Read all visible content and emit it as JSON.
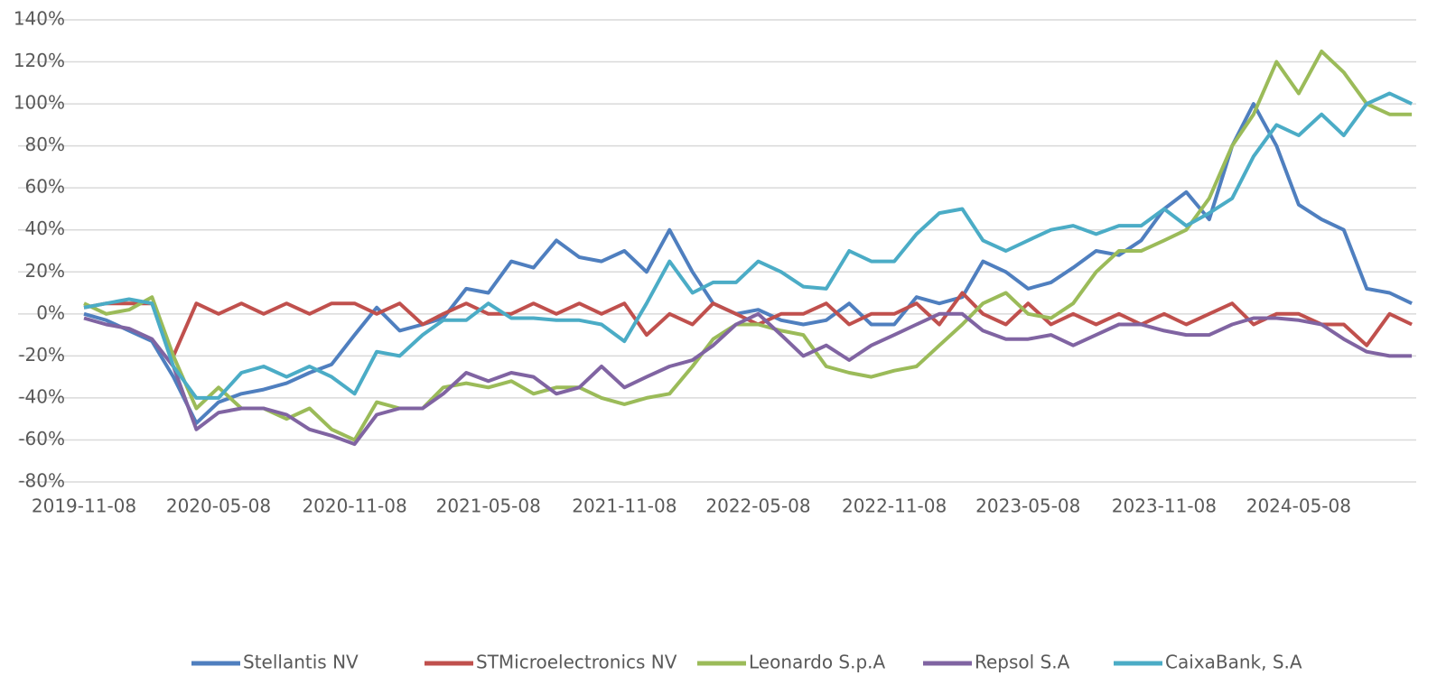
{
  "chart_data": {
    "type": "line",
    "x": [
      "2019-11-08",
      "2019-12-08",
      "2020-01-08",
      "2020-02-08",
      "2020-03-08",
      "2020-04-08",
      "2020-05-08",
      "2020-06-08",
      "2020-07-08",
      "2020-08-08",
      "2020-09-08",
      "2020-10-08",
      "2020-11-08",
      "2020-12-08",
      "2021-01-08",
      "2021-02-08",
      "2021-03-08",
      "2021-04-08",
      "2021-05-08",
      "2021-06-08",
      "2021-07-08",
      "2021-08-08",
      "2021-09-08",
      "2021-10-08",
      "2021-11-08",
      "2021-12-08",
      "2022-01-08",
      "2022-02-08",
      "2022-03-08",
      "2022-04-08",
      "2022-05-08",
      "2022-06-08",
      "2022-07-08",
      "2022-08-08",
      "2022-09-08",
      "2022-10-08",
      "2022-11-08",
      "2022-12-08",
      "2023-01-08",
      "2023-02-08",
      "2023-03-08",
      "2023-04-08",
      "2023-05-08",
      "2023-06-08",
      "2023-07-08",
      "2023-08-08",
      "2023-09-08",
      "2023-10-08",
      "2023-11-08",
      "2023-12-08",
      "2024-01-08",
      "2024-02-08",
      "2024-03-08",
      "2024-04-08",
      "2024-05-08",
      "2024-06-08",
      "2024-07-08",
      "2024-08-08",
      "2024-09-08",
      "2024-10-08"
    ],
    "series": [
      {
        "name": "Stellantis NV",
        "color": "#4f7fbf",
        "values": [
          0,
          -3,
          -8,
          -13,
          -30,
          -52,
          -42,
          -38,
          -36,
          -33,
          -28,
          -24,
          -10,
          3,
          -8,
          -5,
          -2,
          12,
          10,
          25,
          22,
          35,
          27,
          25,
          30,
          20,
          40,
          20,
          5,
          0,
          2,
          -3,
          -5,
          -3,
          5,
          -5,
          -5,
          8,
          5,
          8,
          25,
          20,
          12,
          15,
          22,
          30,
          28,
          35,
          50,
          58,
          45,
          80,
          100,
          80,
          52,
          45,
          40,
          12,
          10,
          5
        ]
      },
      {
        "name": "STMicroelectronics NV",
        "color": "#c0504d",
        "values": [
          3,
          5,
          5,
          5,
          -20,
          5,
          0,
          5,
          0,
          5,
          0,
          5,
          5,
          0,
          5,
          -5,
          0,
          5,
          0,
          0,
          5,
          0,
          5,
          0,
          5,
          -10,
          0,
          -5,
          5,
          0,
          -5,
          0,
          0,
          5,
          -5,
          0,
          0,
          5,
          -5,
          10,
          0,
          -5,
          5,
          -5,
          0,
          -5,
          0,
          -5,
          0,
          -5,
          0,
          5,
          -5,
          0,
          0,
          -5,
          -5,
          -15,
          0,
          -5
        ]
      },
      {
        "name": "Leonardo S.p.A",
        "color": "#9bbb59",
        "values": [
          5,
          0,
          2,
          8,
          -20,
          -45,
          -35,
          -45,
          -45,
          -50,
          -45,
          -55,
          -60,
          -42,
          -45,
          -45,
          -35,
          -33,
          -35,
          -32,
          -38,
          -35,
          -35,
          -40,
          -43,
          -40,
          -38,
          -25,
          -12,
          -5,
          -5,
          -8,
          -10,
          -25,
          -28,
          -30,
          -27,
          -25,
          -15,
          -5,
          5,
          10,
          0,
          -2,
          5,
          20,
          30,
          30,
          35,
          40,
          55,
          80,
          95,
          120,
          105,
          125,
          115,
          100,
          95,
          95
        ]
      },
      {
        "name": "Repsol S.A",
        "color": "#8064a2",
        "values": [
          -2,
          -5,
          -7,
          -12,
          -25,
          -55,
          -47,
          -45,
          -45,
          -48,
          -55,
          -58,
          -62,
          -48,
          -45,
          -45,
          -38,
          -28,
          -32,
          -28,
          -30,
          -38,
          -35,
          -25,
          -35,
          -30,
          -25,
          -22,
          -15,
          -5,
          0,
          -10,
          -20,
          -15,
          -22,
          -15,
          -10,
          -5,
          0,
          0,
          -8,
          -12,
          -12,
          -10,
          -15,
          -10,
          -5,
          -5,
          -8,
          -10,
          -10,
          -5,
          -2,
          -2,
          -3,
          -5,
          -12,
          -18,
          -20,
          -20
        ]
      },
      {
        "name": "CaixaBank, S.A",
        "color": "#4bacc6",
        "values": [
          3,
          5,
          7,
          5,
          -25,
          -40,
          -40,
          -28,
          -25,
          -30,
          -25,
          -30,
          -38,
          -18,
          -20,
          -10,
          -3,
          -3,
          5,
          -2,
          -2,
          -3,
          -3,
          -5,
          -13,
          5,
          25,
          10,
          15,
          15,
          25,
          20,
          13,
          12,
          30,
          25,
          25,
          38,
          48,
          50,
          35,
          30,
          35,
          40,
          42,
          38,
          42,
          42,
          50,
          42,
          48,
          55,
          75,
          90,
          85,
          95,
          85,
          100,
          105,
          100
        ]
      }
    ],
    "xlim": [
      "2019-11-08",
      "2024-10-14"
    ],
    "xticks": [
      "2019-11-08",
      "2020-05-08",
      "2020-11-08",
      "2021-05-08",
      "2021-11-08",
      "2022-05-08",
      "2022-11-08",
      "2023-05-08",
      "2023-11-08",
      "2024-05-08"
    ],
    "ylim": [
      -80,
      140
    ],
    "yticks": [
      {
        "value": -80,
        "label": "-80%"
      },
      {
        "value": -60,
        "label": "-60%"
      },
      {
        "value": -40,
        "label": "-40%"
      },
      {
        "value": -20,
        "label": "-20%"
      },
      {
        "value": 0,
        "label": "0%"
      },
      {
        "value": 20,
        "label": "20%"
      },
      {
        "value": 40,
        "label": "40%"
      },
      {
        "value": 60,
        "label": "60%"
      },
      {
        "value": 80,
        "label": "80%"
      },
      {
        "value": 100,
        "label": "100%"
      },
      {
        "value": 120,
        "label": "120%"
      },
      {
        "value": 140,
        "label": "140%"
      }
    ],
    "grid": true,
    "legend": "bottom"
  }
}
